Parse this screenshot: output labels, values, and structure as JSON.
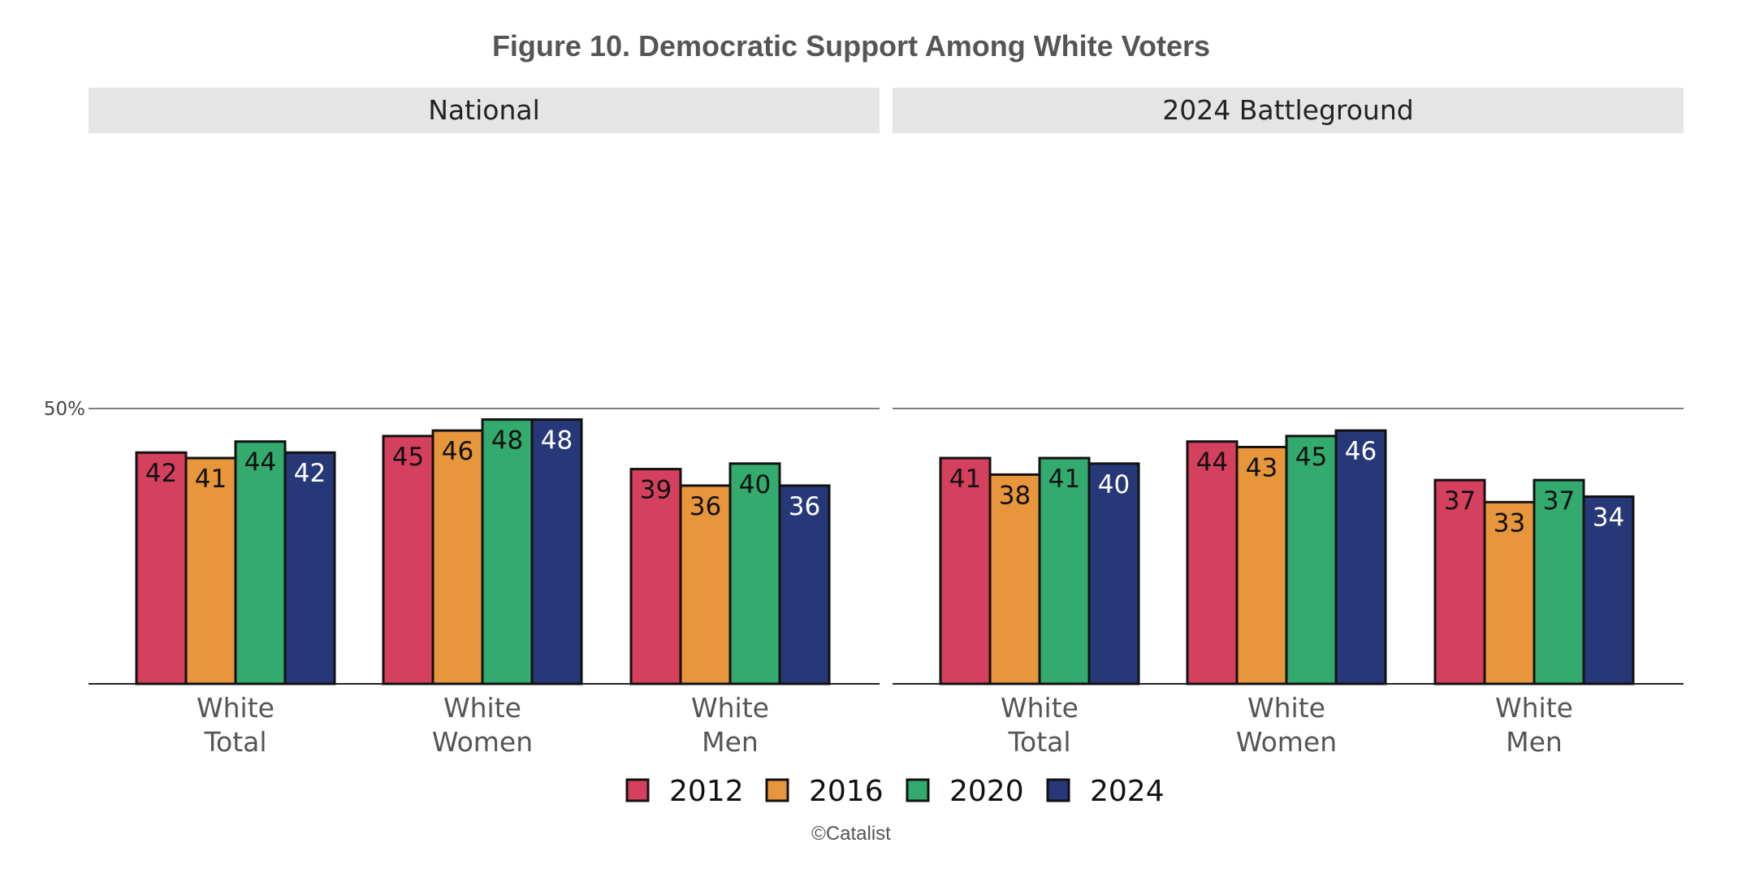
{
  "chart_data": {
    "type": "bar",
    "title": "Figure 10. Democratic Support Among White Voters",
    "caption": "©Catalist",
    "y_tick_label": "50%",
    "y_tick_value": 50,
    "ylim": [
      0,
      100
    ],
    "grid": false,
    "legend_position": "bottom",
    "series": [
      {
        "name": "2012",
        "color": "#D6405F"
      },
      {
        "name": "2016",
        "color": "#E8963B"
      },
      {
        "name": "2020",
        "color": "#33AA6E"
      },
      {
        "name": "2024",
        "color": "#263878"
      }
    ],
    "value_label_colors": [
      "#111111",
      "#111111",
      "#111111",
      "#ffffff"
    ],
    "panels": [
      {
        "name": "National",
        "categories": [
          [
            "White",
            "Total"
          ],
          [
            "White",
            "Women"
          ],
          [
            "White",
            "Men"
          ]
        ],
        "values": [
          [
            42,
            41,
            44,
            42
          ],
          [
            45,
            46,
            48,
            48
          ],
          [
            39,
            36,
            40,
            36
          ]
        ]
      },
      {
        "name": "2024 Battleground",
        "categories": [
          [
            "White",
            "Total"
          ],
          [
            "White",
            "Women"
          ],
          [
            "White",
            "Men"
          ]
        ],
        "values": [
          [
            41,
            38,
            41,
            40
          ],
          [
            44,
            43,
            45,
            46
          ],
          [
            37,
            33,
            37,
            34
          ]
        ]
      }
    ]
  }
}
